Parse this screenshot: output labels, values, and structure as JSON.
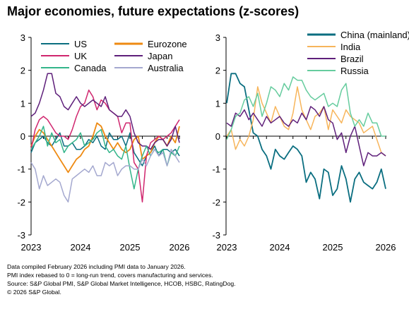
{
  "title": "Major economies, future expectations (z-scores)",
  "notes": [
    "Data compiled February 2026 including PMI data to January 2026.",
    "PMI index rebased to 0 = long-run trend, covers manufacturing and services.",
    "Source: S&P Global PMI, S&P Global Market Intelligence, HCOB, HSBC, RatingDog.",
    "© 2026 S&P Global."
  ],
  "colors": {
    "US": "#0a6e80",
    "Eurozone": "#ee8a12",
    "UK": "#d0266e",
    "Japan": "#5e1f7a",
    "Canada": "#33b58a",
    "Australia": "#a4a8cf",
    "China (mainland)": "#0a6e80",
    "India": "#f7b55b",
    "Brazil": "#5e1f7a",
    "Russia": "#66cc9e"
  },
  "chart_data": [
    {
      "type": "line",
      "x_tick_labels": [
        "2023",
        "2024",
        "2025",
        "2026"
      ],
      "x_start": "2023-01",
      "ylim": [
        -3,
        3
      ],
      "yticks": [
        3,
        2,
        1,
        0,
        -1,
        -2,
        -3
      ],
      "legend_position": "top",
      "series": [
        {
          "name": "US",
          "values": [
            -0.5,
            -0.2,
            -0.1,
            0.0,
            -0.2,
            -0.3,
            -0.1,
            0.1,
            -0.3,
            -0.3,
            -0.2,
            -0.4,
            -0.4,
            -0.3,
            -0.1,
            -0.2,
            0.0,
            -0.3,
            -0.4,
            0.1,
            -0.1,
            -0.1,
            0.0,
            -0.3,
            0.1,
            -0.5,
            -0.7,
            -0.9,
            -0.6,
            -0.5,
            -0.3,
            -0.6,
            -0.4,
            -0.4,
            -0.5,
            -0.4,
            -0.6
          ]
        },
        {
          "name": "Eurozone",
          "values": [
            -0.3,
            0.0,
            0.2,
            0.1,
            -0.1,
            -0.3,
            -0.5,
            -0.7,
            -0.9,
            -1.1,
            -0.9,
            -0.7,
            -0.6,
            -0.4,
            -0.3,
            0.0,
            0.4,
            0.3,
            0.0,
            -0.2,
            -0.4,
            -0.2,
            -0.4,
            -0.5,
            -0.4,
            -0.1,
            0.0,
            -0.7,
            -0.6,
            -0.5,
            -0.2,
            0.0,
            -0.1,
            -0.3,
            0.0,
            -0.2,
            0.3
          ]
        },
        {
          "name": "UK",
          "values": [
            -0.4,
            0.2,
            0.5,
            0.6,
            0.5,
            0.3,
            0.1,
            0.0,
            0.0,
            -0.1,
            0.2,
            0.6,
            0.9,
            1.0,
            1.4,
            1.2,
            0.8,
            1.1,
            1.0,
            0.8,
            0.7,
            0.6,
            0.1,
            0.4,
            0.4,
            -0.8,
            -1.0,
            -2.0,
            -0.6,
            -0.2,
            -0.1,
            0.0,
            -0.1,
            0.0,
            0.1,
            0.3,
            0.5
          ]
        },
        {
          "name": "Japan",
          "values": [
            0.6,
            0.7,
            1.0,
            1.4,
            1.9,
            1.9,
            1.3,
            1.2,
            0.9,
            0.8,
            1.0,
            1.2,
            1.0,
            0.9,
            1.0,
            1.1,
            1.0,
            0.9,
            1.2,
            0.8,
            0.7,
            0.6,
            0.6,
            0.8,
            0.6,
            0.1,
            -0.2,
            -0.3,
            -0.3,
            -0.4,
            -0.2,
            -0.1,
            -0.1,
            -0.3,
            -0.1,
            0.3,
            -0.2
          ]
        },
        {
          "name": "Canada",
          "values": [
            -0.4,
            -0.2,
            0.0,
            0.3,
            -0.3,
            0.1,
            -0.2,
            -0.1,
            -0.5,
            -0.3,
            -0.2,
            -0.1,
            0.1,
            -0.3,
            -0.2,
            -0.1,
            0.1,
            0.2,
            -0.3,
            -0.5,
            -0.4,
            -0.6,
            -0.7,
            -0.3,
            -1.0,
            -1.6,
            -1.0,
            -0.6,
            -0.3,
            -0.6,
            -0.4,
            -0.5,
            -0.4,
            -0.9,
            -0.5,
            -0.6,
            -0.3
          ]
        },
        {
          "name": "Australia",
          "values": [
            -0.8,
            -1.0,
            -1.6,
            -1.2,
            -1.5,
            -1.4,
            -1.3,
            -1.4,
            -1.8,
            -2.0,
            -1.3,
            -1.2,
            -1.1,
            -1.0,
            -1.1,
            -0.9,
            -1.2,
            -1.2,
            -0.8,
            -0.9,
            -0.8,
            -1.2,
            -1.0,
            -0.9,
            -0.9,
            -1.0,
            -1.0,
            -0.7,
            -0.9,
            -0.6,
            -0.4,
            -0.6,
            -0.5,
            -0.9,
            -0.4,
            -0.6,
            -0.8
          ]
        }
      ]
    },
    {
      "type": "line",
      "x_tick_labels": [
        "2023",
        "2024",
        "2025",
        "2026"
      ],
      "x_start": "2023-01",
      "ylim": [
        -3,
        3
      ],
      "yticks": [
        3,
        2,
        1,
        0,
        -1,
        -2,
        -3
      ],
      "legend_position": "top-right",
      "series": [
        {
          "name": "China (mainland)",
          "values": [
            1.0,
            1.9,
            1.9,
            1.6,
            1.5,
            0.8,
            0.1,
            0.0,
            -0.4,
            -0.6,
            -1.0,
            -0.4,
            -0.6,
            -0.7,
            -0.5,
            -0.3,
            -0.4,
            -0.6,
            -1.4,
            -1.1,
            -1.3,
            -1.9,
            -1.0,
            -1.1,
            -1.8,
            -1.6,
            -0.9,
            -1.3,
            -2.0,
            -1.3,
            -1.1,
            -1.4,
            -1.5,
            -1.6,
            -1.4,
            -1.0,
            -1.6
          ]
        },
        {
          "name": "India",
          "values": [
            0.0,
            0.2,
            -0.4,
            -0.1,
            -0.3,
            0.0,
            0.5,
            1.5,
            1.0,
            0.7,
            0.4,
            0.9,
            0.6,
            0.3,
            0.2,
            0.7,
            1.5,
            0.8,
            0.5,
            0.2,
            0.6,
            0.7,
            0.9,
            0.2,
            0.8,
            0.6,
            0.4,
            0.8,
            0.6,
            0.5,
            0.4,
            0.1,
            0.2,
            0.3,
            -0.1,
            -0.5,
            -0.6
          ]
        },
        {
          "name": "Brazil",
          "values": [
            0.4,
            0.3,
            0.7,
            0.6,
            0.8,
            0.5,
            0.7,
            0.5,
            0.3,
            0.6,
            0.4,
            0.5,
            0.6,
            0.4,
            0.3,
            0.5,
            0.4,
            0.7,
            0.5,
            0.9,
            0.8,
            0.6,
            0.9,
            0.5,
            0.4,
            -0.1,
            0.1,
            -0.5,
            0.0,
            0.3,
            -0.3,
            -0.9,
            -0.5,
            -0.6,
            -0.6,
            -0.5,
            -0.6
          ]
        },
        {
          "name": "Russia",
          "values": [
            -0.1,
            0.2,
            0.6,
            0.7,
            1.1,
            1.2,
            0.9,
            1.3,
            0.6,
            1.0,
            1.5,
            1.4,
            1.2,
            1.6,
            1.4,
            1.8,
            1.7,
            1.7,
            1.4,
            1.2,
            1.1,
            1.2,
            1.3,
            0.9,
            1.0,
            0.9,
            1.4,
            1.6,
            0.7,
            0.3,
            0.5,
            0.3,
            0.7,
            0.4,
            0.4,
            0.0,
            0.0
          ]
        }
      ]
    }
  ]
}
